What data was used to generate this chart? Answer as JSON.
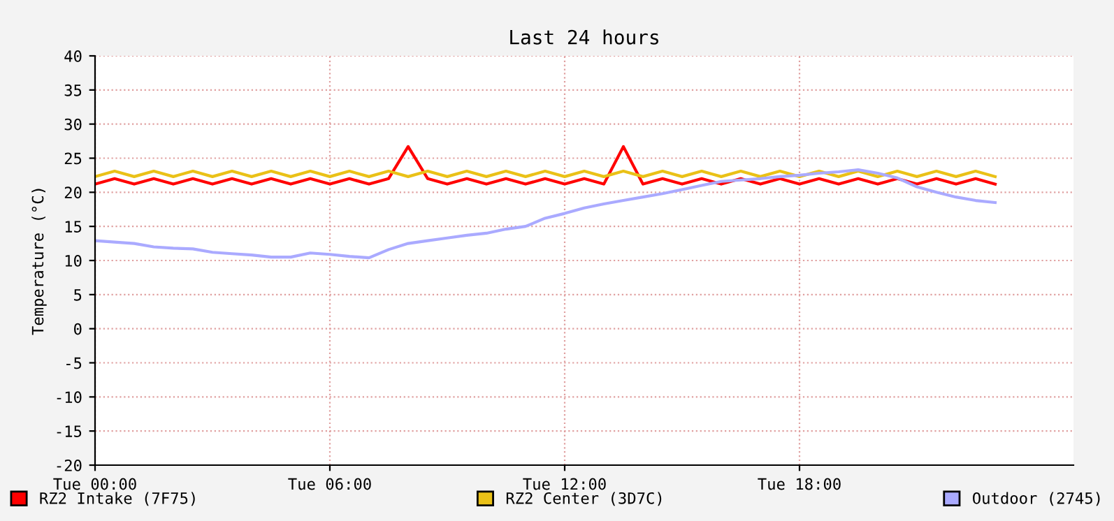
{
  "chart_data": {
    "type": "line",
    "title": "Last 24 hours",
    "ylabel": "Temperature (°C)",
    "categories": [
      "Tue 00:00",
      null,
      null,
      null,
      null,
      null,
      null,
      null,
      null,
      null,
      null,
      null,
      "Tue 06:00",
      null,
      null,
      null,
      null,
      null,
      null,
      null,
      null,
      null,
      null,
      null,
      "Tue 12:00",
      null,
      null,
      null,
      null,
      null,
      null,
      null,
      null,
      null,
      null,
      null,
      "Tue 18:00",
      null,
      null,
      null,
      null,
      null,
      null,
      null,
      null,
      null,
      null,
      null,
      null,
      null,
      null
    ],
    "ylim": [
      -20,
      40
    ],
    "yticks": [
      -20,
      -15,
      -10,
      -5,
      0,
      5,
      10,
      15,
      20,
      25,
      30,
      35,
      40
    ],
    "grid": true,
    "legend": "bottom",
    "marker": "none",
    "line_style": "solid",
    "series": [
      {
        "name": "RZ2 Intake (7F75)",
        "color": "#ff0000",
        "values": [
          21.2,
          22.0,
          21.2,
          22.0,
          21.2,
          22.0,
          21.2,
          22.0,
          21.2,
          22.0,
          21.2,
          22.0,
          21.2,
          22.0,
          21.2,
          22.0,
          26.7,
          22.0,
          21.2,
          22.0,
          21.2,
          22.0,
          21.2,
          22.0,
          21.2,
          22.0,
          21.2,
          26.7,
          21.2,
          22.0,
          21.2,
          22.0,
          21.2,
          22.0,
          21.2,
          22.0,
          21.2,
          22.0,
          21.2,
          22.0,
          21.2,
          22.0,
          21.2,
          22.0,
          21.2,
          22.0,
          21.2,
          null,
          null,
          null,
          null
        ]
      },
      {
        "name": "RZ2 Center (3D7C)",
        "color": "#eac117",
        "values": [
          22.3,
          23.1,
          22.3,
          23.1,
          22.3,
          23.1,
          22.3,
          23.1,
          22.3,
          23.1,
          22.3,
          23.1,
          22.3,
          23.1,
          22.3,
          23.1,
          22.3,
          23.1,
          22.3,
          23.1,
          22.3,
          23.1,
          22.3,
          23.1,
          22.3,
          23.1,
          22.3,
          23.1,
          22.3,
          23.1,
          22.3,
          23.1,
          22.3,
          23.1,
          22.3,
          23.1,
          22.3,
          23.1,
          22.3,
          23.1,
          22.3,
          23.1,
          22.3,
          23.1,
          22.3,
          23.1,
          22.3,
          null,
          null,
          null,
          null
        ]
      },
      {
        "name": "Outdoor (2745)",
        "color": "#aaaaff",
        "values": [
          12.9,
          12.7,
          12.5,
          12.0,
          11.8,
          11.7,
          11.2,
          11.0,
          10.8,
          10.5,
          10.5,
          11.1,
          10.9,
          10.6,
          10.4,
          11.6,
          12.5,
          12.9,
          13.3,
          13.7,
          14.0,
          14.6,
          15.0,
          16.2,
          16.9,
          17.7,
          18.3,
          18.8,
          19.3,
          19.8,
          20.4,
          21.0,
          21.6,
          21.8,
          22.0,
          22.3,
          22.5,
          22.8,
          23.0,
          23.3,
          22.8,
          22.1,
          20.8,
          20.0,
          19.3,
          18.8,
          18.5,
          null,
          null,
          null,
          null
        ]
      }
    ]
  }
}
